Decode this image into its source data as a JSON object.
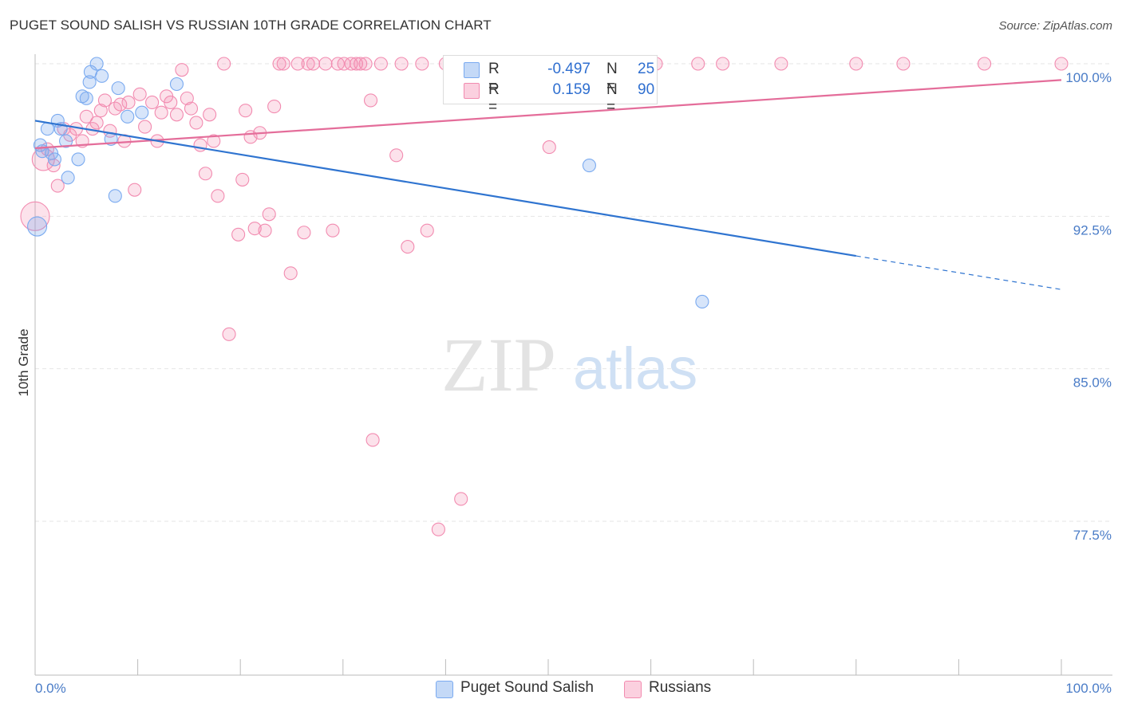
{
  "header": {
    "title": "PUGET SOUND SALISH VS RUSSIAN 10TH GRADE CORRELATION CHART",
    "source": "Source: ZipAtlas.com"
  },
  "watermark": {
    "zip": "ZIP",
    "atlas": "atlas"
  },
  "legend": {
    "rows": [
      {
        "r_label": "R =",
        "r_value": "-0.497",
        "n_label": "N =",
        "n_value": "25",
        "color": "#7aaaf0"
      },
      {
        "r_label": "R =",
        "r_value": "0.159",
        "n_label": "N =",
        "n_value": "90",
        "color": "#f28bb0"
      }
    ]
  },
  "bottom_legend": [
    {
      "label": "Puget Sound Salish",
      "color": "#7aaaf0"
    },
    {
      "label": "Russians",
      "color": "#f28bb0"
    }
  ],
  "chart_data": {
    "type": "scatter",
    "title": "PUGET SOUND SALISH VS RUSSIAN 10TH GRADE CORRELATION CHART",
    "xlabel": "",
    "ylabel": "10th Grade",
    "xlim": [
      0,
      100
    ],
    "ylim": [
      70,
      100.8
    ],
    "x_tick_labels": [
      "0.0%",
      "100.0%"
    ],
    "y_ticks": [
      77.5,
      85.0,
      92.5,
      100.0
    ],
    "y_tick_labels": [
      "77.5%",
      "85.0%",
      "92.5%",
      "100.0%"
    ],
    "grid": true,
    "series": [
      {
        "name": "Puget Sound Salish",
        "color": "#7aaaf0",
        "line_color": "#2f74d0",
        "trend": {
          "x0": 0,
          "y0": 97.2,
          "x1": 80,
          "y1": 90.55,
          "dash_to_x": 100,
          "dash_to_y": 88.9
        },
        "points": [
          [
            0.2,
            92.0,
            12
          ],
          [
            0.5,
            96.0,
            8
          ],
          [
            0.7,
            95.7,
            8
          ],
          [
            1.2,
            96.8,
            8
          ],
          [
            1.6,
            95.6,
            8
          ],
          [
            1.9,
            95.3,
            8
          ],
          [
            2.2,
            97.2,
            8
          ],
          [
            2.5,
            96.8,
            8
          ],
          [
            3.0,
            96.2,
            8
          ],
          [
            3.2,
            94.4,
            8
          ],
          [
            4.2,
            95.3,
            8
          ],
          [
            4.6,
            98.4,
            8
          ],
          [
            5.0,
            98.3,
            8
          ],
          [
            5.3,
            99.1,
            8
          ],
          [
            5.4,
            99.6,
            8
          ],
          [
            6.0,
            100.0,
            8
          ],
          [
            6.5,
            99.4,
            8
          ],
          [
            7.4,
            96.3,
            8
          ],
          [
            7.8,
            93.5,
            8
          ],
          [
            8.1,
            98.8,
            8
          ],
          [
            9.0,
            97.4,
            8
          ],
          [
            10.4,
            97.6,
            8
          ],
          [
            13.8,
            99.0,
            8
          ],
          [
            54.0,
            95.0,
            8
          ],
          [
            65.0,
            88.3,
            8
          ]
        ]
      },
      {
        "name": "Russians",
        "color": "#f28bb0",
        "line_color": "#e46d9a",
        "trend": {
          "x0": 0,
          "y0": 95.85,
          "x1": 100,
          "y1": 99.2
        },
        "points": [
          [
            0.0,
            92.5,
            18
          ],
          [
            0.8,
            95.3,
            14
          ],
          [
            1.2,
            95.8,
            8
          ],
          [
            1.8,
            95.0,
            8
          ],
          [
            2.2,
            94.0,
            8
          ],
          [
            2.8,
            96.8,
            8
          ],
          [
            3.4,
            96.5,
            8
          ],
          [
            4.0,
            96.8,
            8
          ],
          [
            4.6,
            96.2,
            8
          ],
          [
            5.0,
            97.4,
            8
          ],
          [
            5.6,
            96.8,
            8
          ],
          [
            6.0,
            97.1,
            8
          ],
          [
            6.4,
            97.7,
            8
          ],
          [
            6.8,
            98.2,
            8
          ],
          [
            7.3,
            96.7,
            8
          ],
          [
            7.8,
            97.8,
            8
          ],
          [
            8.3,
            98.0,
            8
          ],
          [
            8.7,
            96.2,
            8
          ],
          [
            9.1,
            98.1,
            8
          ],
          [
            9.7,
            93.8,
            8
          ],
          [
            10.2,
            98.5,
            8
          ],
          [
            10.7,
            96.9,
            8
          ],
          [
            11.4,
            98.1,
            8
          ],
          [
            11.9,
            96.2,
            8
          ],
          [
            12.3,
            97.6,
            8
          ],
          [
            12.8,
            98.4,
            8
          ],
          [
            13.2,
            98.1,
            8
          ],
          [
            13.8,
            97.5,
            8
          ],
          [
            14.3,
            99.7,
            8
          ],
          [
            14.8,
            98.3,
            8
          ],
          [
            15.2,
            97.8,
            8
          ],
          [
            15.7,
            97.1,
            8
          ],
          [
            16.1,
            96.0,
            8
          ],
          [
            16.6,
            94.6,
            8
          ],
          [
            17.0,
            97.5,
            8
          ],
          [
            17.4,
            96.2,
            8
          ],
          [
            17.8,
            93.5,
            8
          ],
          [
            18.4,
            100.0,
            8
          ],
          [
            18.9,
            86.7,
            8
          ],
          [
            19.8,
            91.6,
            8
          ],
          [
            20.2,
            94.3,
            8
          ],
          [
            20.5,
            97.7,
            8
          ],
          [
            21.0,
            96.4,
            8
          ],
          [
            21.4,
            91.9,
            8
          ],
          [
            21.9,
            96.6,
            8
          ],
          [
            22.4,
            91.8,
            8
          ],
          [
            22.8,
            92.6,
            8
          ],
          [
            23.3,
            97.9,
            8
          ],
          [
            23.8,
            100.0,
            8
          ],
          [
            24.2,
            100.0,
            8
          ],
          [
            24.9,
            89.7,
            8
          ],
          [
            25.6,
            100.0,
            8
          ],
          [
            26.2,
            91.7,
            8
          ],
          [
            26.6,
            100.0,
            8
          ],
          [
            27.1,
            100.0,
            8
          ],
          [
            28.3,
            100.0,
            8
          ],
          [
            29.0,
            91.8,
            8
          ],
          [
            29.5,
            100.0,
            8
          ],
          [
            30.1,
            100.0,
            8
          ],
          [
            30.8,
            100.0,
            8
          ],
          [
            31.3,
            100.0,
            8
          ],
          [
            31.7,
            100.0,
            8
          ],
          [
            32.2,
            100.0,
            8
          ],
          [
            32.7,
            98.2,
            8
          ],
          [
            32.9,
            81.5,
            8
          ],
          [
            33.7,
            100.0,
            8
          ],
          [
            35.2,
            95.5,
            8
          ],
          [
            35.7,
            100.0,
            8
          ],
          [
            36.3,
            91.0,
            8
          ],
          [
            37.7,
            100.0,
            8
          ],
          [
            38.2,
            91.8,
            8
          ],
          [
            39.3,
            77.1,
            8
          ],
          [
            40.0,
            100.0,
            8
          ],
          [
            41.0,
            100.0,
            8
          ],
          [
            41.5,
            78.6,
            8
          ],
          [
            44.3,
            100.0,
            8
          ],
          [
            46.3,
            100.0,
            8
          ],
          [
            50.1,
            95.9,
            8
          ],
          [
            52.0,
            100.0,
            8
          ],
          [
            52.6,
            100.0,
            8
          ],
          [
            55.0,
            100.0,
            8
          ],
          [
            57.3,
            100.0,
            8
          ],
          [
            60.5,
            100.0,
            8
          ],
          [
            64.6,
            100.0,
            8
          ],
          [
            67.0,
            100.0,
            8
          ],
          [
            72.7,
            100.0,
            8
          ],
          [
            80.0,
            100.0,
            8
          ],
          [
            84.6,
            100.0,
            8
          ],
          [
            92.5,
            100.0,
            8
          ],
          [
            100.0,
            100.0,
            8
          ]
        ]
      }
    ]
  }
}
